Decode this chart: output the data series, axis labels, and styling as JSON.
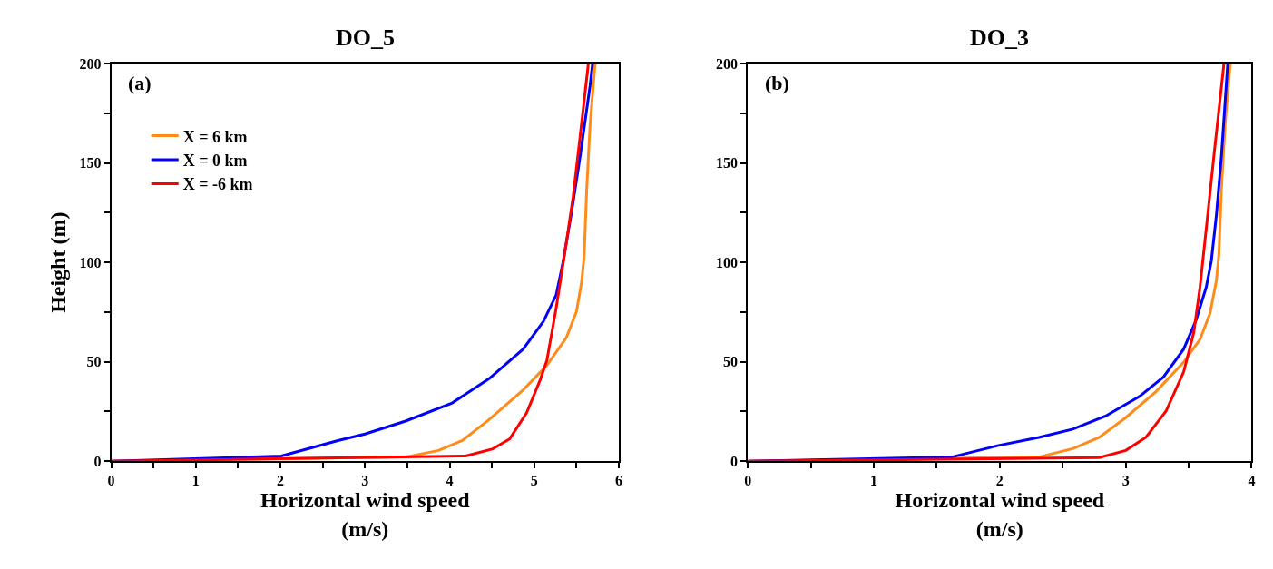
{
  "chart_data": [
    {
      "type": "line",
      "title": "DO_5",
      "xlabel": "Horizontal wind speed\n(m/s)",
      "ylabel": "Height (m)",
      "annotations": [
        "(a)"
      ],
      "legend": "top left",
      "marker": "none",
      "line_style": "solid",
      "xlim": [
        0,
        6
      ],
      "xticks": [
        0,
        {
          "value": 0.5,
          "label": null
        },
        1,
        {
          "value": 1.5,
          "label": null
        },
        2,
        {
          "value": 2.5,
          "label": null
        },
        3,
        {
          "value": 3.5,
          "label": null
        },
        4,
        {
          "value": 4.5,
          "label": null
        },
        5,
        {
          "value": 5.5,
          "label": null
        },
        6
      ],
      "ylim": [
        0,
        200
      ],
      "yticks": [
        0,
        {
          "value": 25,
          "label": null
        },
        50,
        {
          "value": 75,
          "label": null
        },
        100,
        {
          "value": 125,
          "label": null
        },
        150,
        {
          "value": 175,
          "label": null
        },
        200
      ],
      "series": [
        {
          "name": "X = 6 km",
          "color": "#ff8c1a",
          "x": [
            0,
            3.48,
            3.87,
            4.15,
            4.47,
            4.87,
            5.15,
            5.38,
            5.5,
            5.56,
            5.59,
            5.62,
            5.66,
            5.72
          ],
          "values": [
            0,
            2.1,
            5.4,
            10.4,
            21,
            35.9,
            48.2,
            62.2,
            75.3,
            90,
            103,
            136,
            169,
            200
          ]
        },
        {
          "name": "X = 0 km",
          "color": "#0000ff",
          "x": [
            0,
            2.01,
            2.68,
            3.0,
            3.48,
            4.03,
            4.47,
            4.87,
            5.11,
            5.26,
            5.34,
            5.44,
            5.54,
            5.66,
            5.69
          ],
          "values": [
            0,
            2.6,
            10.4,
            13.7,
            20.2,
            29.3,
            41.6,
            56.4,
            70.4,
            83.6,
            100,
            124.7,
            152.6,
            188.8,
            200
          ]
        },
        {
          "name": "X = -6 km",
          "color": "#ff0000",
          "x": [
            0,
            4.19,
            4.51,
            4.71,
            4.91,
            5.07,
            5.15,
            5.26,
            5.38,
            5.46,
            5.54,
            5.64
          ],
          "values": [
            0,
            2.6,
            6.2,
            11.2,
            24.3,
            40.8,
            50.7,
            77,
            109.9,
            133,
            162.5,
            200
          ]
        }
      ]
    },
    {
      "type": "line",
      "title": "DO_3",
      "xlabel": "Horizontal wind speed\n(m/s)",
      "annotations": [
        "(b)"
      ],
      "legend": false,
      "marker": "none",
      "line_style": "solid",
      "xlim": [
        0,
        4
      ],
      "xticks": [
        0,
        {
          "value": 0.5,
          "label": null
        },
        1,
        {
          "value": 1.5,
          "label": null
        },
        2,
        {
          "value": 2.5,
          "label": null
        },
        3,
        {
          "value": 3.5,
          "label": null
        },
        4
      ],
      "ylim": [
        0,
        200
      ],
      "yticks": [
        0,
        {
          "value": 25,
          "label": null
        },
        50,
        {
          "value": 75,
          "label": null
        },
        100,
        {
          "value": 125,
          "label": null
        },
        150,
        {
          "value": 175,
          "label": null
        },
        200
      ],
      "series": [
        {
          "color": "#ff8c1a",
          "x": [
            0,
            2.31,
            2.58,
            2.79,
            3.0,
            3.24,
            3.46,
            3.59,
            3.67,
            3.72,
            3.74,
            3.76,
            3.79,
            3.83
          ],
          "values": [
            0,
            2.1,
            6.3,
            12,
            21.9,
            35,
            49.8,
            61.3,
            74.5,
            91,
            104,
            137,
            170,
            200
          ]
        },
        {
          "color": "#0000ff",
          "x": [
            0,
            1.62,
            1.99,
            2.31,
            2.58,
            2.84,
            3.11,
            3.3,
            3.46,
            3.56,
            3.64,
            3.68,
            3.72,
            3.76,
            3.81
          ],
          "values": [
            0,
            2.1,
            7.9,
            12,
            16.1,
            22.7,
            32.6,
            42.4,
            56.4,
            71.2,
            87.7,
            100.8,
            123.8,
            153.5,
            200
          ]
        },
        {
          "color": "#ff0000",
          "x": [
            0,
            2.79,
            3.0,
            3.16,
            3.32,
            3.46,
            3.54,
            3.59,
            3.64,
            3.7,
            3.78
          ],
          "values": [
            0,
            1.8,
            5.4,
            12,
            25.2,
            44.9,
            64.6,
            87.7,
            117.3,
            153.5,
            200
          ]
        }
      ]
    }
  ]
}
